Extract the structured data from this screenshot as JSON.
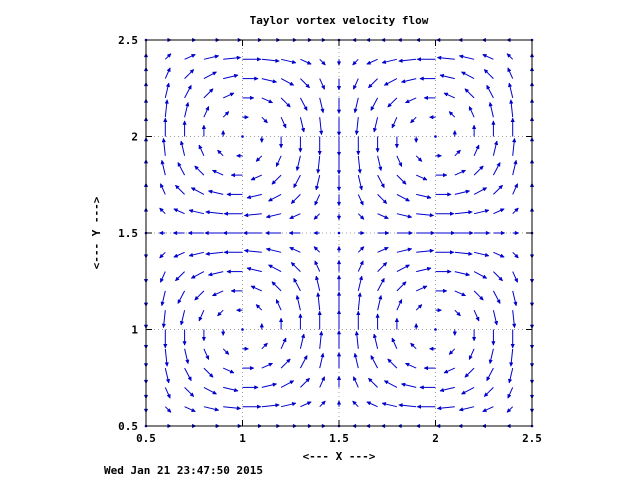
{
  "chart_data": {
    "type": "vector-field",
    "title": "Taylor vortex velocity flow",
    "xlabel": "<--- X --->",
    "ylabel": "<--- Y --->",
    "xlim": [
      0.5,
      2.5
    ],
    "ylim": [
      0.5,
      2.5
    ],
    "x_ticks": [
      "0.5",
      "1",
      "1.5",
      "2",
      "2.5"
    ],
    "y_ticks": [
      "0.5",
      "1",
      "1.5",
      "2",
      "2.5"
    ],
    "grid": true,
    "field": {
      "u": "-cos(pi*x)*sin(pi*y)",
      "v": "sin(pi*x)*cos(pi*y)"
    },
    "sample_step": 0.1,
    "arrow_color": "#0000cc",
    "grid_color": "#a0a0a0"
  },
  "footer": {
    "timestamp": "Wed Jan 21 23:47:50 2015"
  }
}
